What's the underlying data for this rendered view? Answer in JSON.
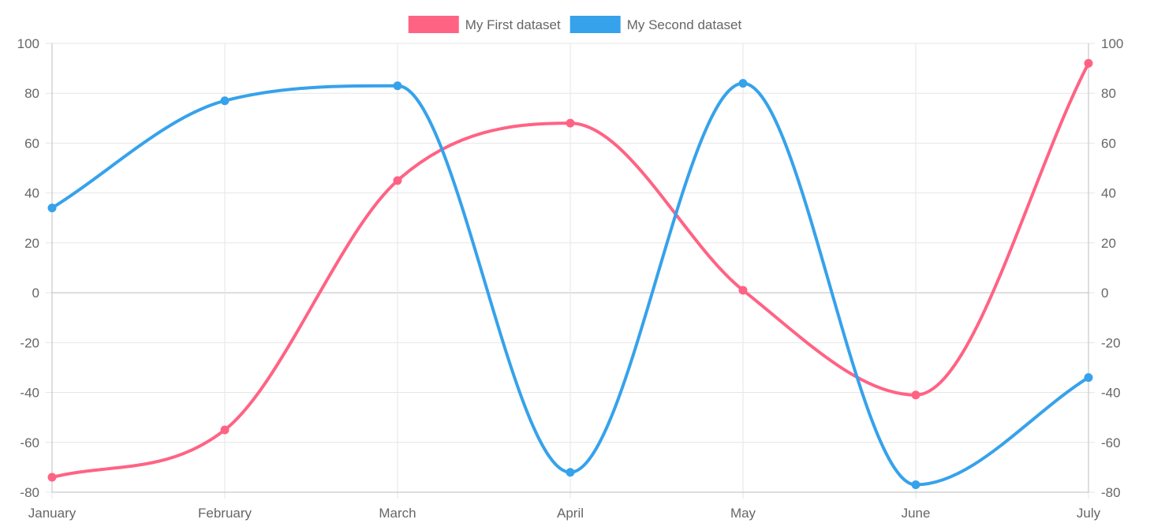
{
  "chart_data": {
    "type": "line",
    "categories": [
      "January",
      "February",
      "March",
      "April",
      "May",
      "June",
      "July"
    ],
    "series": [
      {
        "name": "My First dataset",
        "color": "#ff6384",
        "values": [
          -74,
          -55,
          45,
          68,
          1,
          -41,
          92
        ]
      },
      {
        "name": "My Second dataset",
        "color": "#36a2eb",
        "values": [
          34,
          77,
          83,
          -72,
          84,
          -77,
          -34
        ]
      }
    ],
    "ylim": [
      -80,
      100
    ],
    "yticks": [
      100,
      80,
      60,
      40,
      20,
      0,
      -20,
      -40,
      -60,
      -80
    ],
    "y_axes": [
      "left",
      "right"
    ],
    "legend_position": "top",
    "grid": true,
    "curve": "smooth"
  }
}
